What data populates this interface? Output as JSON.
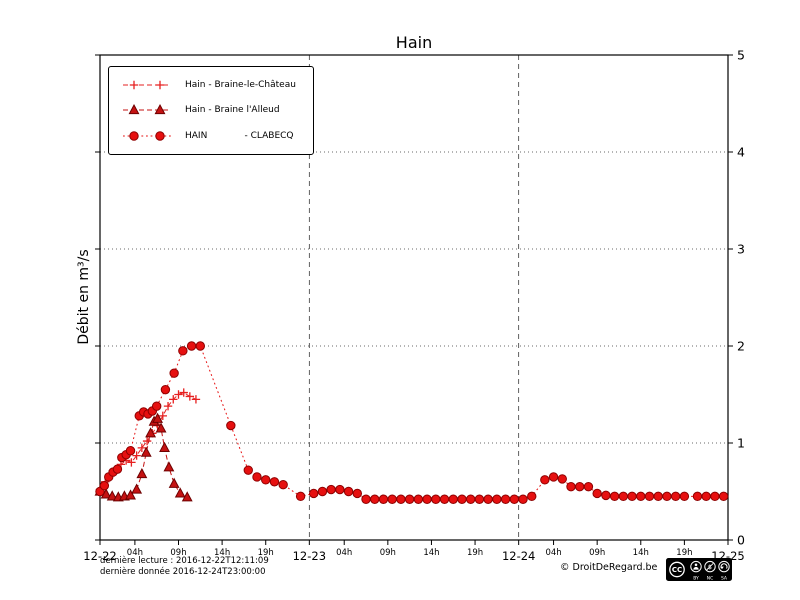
{
  "chart_data": {
    "type": "line",
    "title": "Hain",
    "ylabel": "Débit en m³/s",
    "xlabel": "",
    "x_unit": "hours since 2016-12-22 00:00",
    "xlim": [
      0,
      72
    ],
    "ylim": [
      0,
      5
    ],
    "legend_position": "upper left",
    "grid": {
      "h_lines": [
        1,
        2,
        3,
        4
      ],
      "v_lines": [
        24,
        48
      ]
    },
    "y_ticks": [
      {
        "v": 0,
        "label": "0"
      },
      {
        "v": 1,
        "label": "1"
      },
      {
        "v": 2,
        "label": "2"
      },
      {
        "v": 3,
        "label": "3"
      },
      {
        "v": 4,
        "label": "4"
      },
      {
        "v": 5,
        "label": "5"
      }
    ],
    "x_ticks": [
      {
        "t": 0,
        "label": "12-22",
        "major": true
      },
      {
        "t": 4,
        "label": "04h",
        "major": false
      },
      {
        "t": 9,
        "label": "09h",
        "major": false
      },
      {
        "t": 14,
        "label": "14h",
        "major": false
      },
      {
        "t": 19,
        "label": "19h",
        "major": false
      },
      {
        "t": 24,
        "label": "12-23",
        "major": true
      },
      {
        "t": 28,
        "label": "04h",
        "major": false
      },
      {
        "t": 33,
        "label": "09h",
        "major": false
      },
      {
        "t": 38,
        "label": "14h",
        "major": false
      },
      {
        "t": 43,
        "label": "19h",
        "major": false
      },
      {
        "t": 48,
        "label": "12-24",
        "major": true
      },
      {
        "t": 52,
        "label": "04h",
        "major": false
      },
      {
        "t": 57,
        "label": "09h",
        "major": false
      },
      {
        "t": 62,
        "label": "14h",
        "major": false
      },
      {
        "t": 67,
        "label": "19h",
        "major": false
      },
      {
        "t": 72,
        "label": "12-25",
        "major": true
      }
    ],
    "series": [
      {
        "name": "Hain - Braine-le-Château",
        "marker": "plus",
        "line": "dashed",
        "color": "#e62020",
        "edge": "#e62020",
        "points": [
          [
            0,
            0.52
          ],
          [
            0.6,
            0.6
          ],
          [
            1.2,
            0.66
          ],
          [
            1.8,
            0.73
          ],
          [
            2.4,
            0.78
          ],
          [
            3,
            0.82
          ],
          [
            3.6,
            0.8
          ],
          [
            4.2,
            0.87
          ],
          [
            4.8,
            0.95
          ],
          [
            5.4,
            1.02
          ],
          [
            6,
            1.1
          ],
          [
            6.6,
            1.18
          ],
          [
            7.2,
            1.28
          ],
          [
            7.8,
            1.38
          ],
          [
            8.4,
            1.45
          ],
          [
            9,
            1.5
          ],
          [
            9.6,
            1.52
          ],
          [
            10.3,
            1.48
          ],
          [
            11,
            1.45
          ]
        ]
      },
      {
        "name": "Hain - Braine l'Alleud",
        "marker": "triangle",
        "line": "dashed",
        "color": "#c41212",
        "edge": "#6e0000",
        "points": [
          [
            0,
            0.5
          ],
          [
            0.7,
            0.47
          ],
          [
            1.4,
            0.45
          ],
          [
            2.1,
            0.44
          ],
          [
            2.8,
            0.45
          ],
          [
            3.5,
            0.46
          ],
          [
            4.2,
            0.52
          ],
          [
            4.8,
            0.68
          ],
          [
            5.3,
            0.9
          ],
          [
            5.8,
            1.1
          ],
          [
            6.2,
            1.22
          ],
          [
            6.6,
            1.25
          ],
          [
            7,
            1.15
          ],
          [
            7.4,
            0.95
          ],
          [
            7.9,
            0.75
          ],
          [
            8.5,
            0.58
          ],
          [
            9.2,
            0.48
          ],
          [
            10,
            0.44
          ]
        ]
      },
      {
        "name": "HAIN             - CLABECQ",
        "marker": "circle",
        "line": "dotted",
        "color": "#e61010",
        "edge": "#8e0000",
        "points": [
          [
            0,
            0.5
          ],
          [
            0.5,
            0.56
          ],
          [
            1,
            0.65
          ],
          [
            1.5,
            0.7
          ],
          [
            2,
            0.73
          ],
          [
            2.5,
            0.85
          ],
          [
            3,
            0.88
          ],
          [
            3.5,
            0.92
          ],
          [
            4.5,
            1.28
          ],
          [
            5,
            1.32
          ],
          [
            5.5,
            1.3
          ],
          [
            6,
            1.33
          ],
          [
            6.5,
            1.38
          ],
          [
            7.5,
            1.55
          ],
          [
            8.5,
            1.72
          ],
          [
            9.5,
            1.95
          ],
          [
            10.5,
            2
          ],
          [
            11.5,
            2
          ],
          [
            15,
            1.18
          ],
          [
            17,
            0.72
          ],
          [
            18,
            0.65
          ],
          [
            19,
            0.62
          ],
          [
            20,
            0.6
          ],
          [
            21,
            0.57
          ],
          [
            23,
            0.45
          ],
          [
            24.5,
            0.48
          ],
          [
            25.5,
            0.5
          ],
          [
            26.5,
            0.52
          ],
          [
            27.5,
            0.52
          ],
          [
            28.5,
            0.5
          ],
          [
            29.5,
            0.48
          ],
          [
            30.5,
            0.42
          ],
          [
            31.5,
            0.42
          ],
          [
            32.5,
            0.42
          ],
          [
            33.5,
            0.42
          ],
          [
            34.5,
            0.42
          ],
          [
            35.5,
            0.42
          ],
          [
            36.5,
            0.42
          ],
          [
            37.5,
            0.42
          ],
          [
            38.5,
            0.42
          ],
          [
            39.5,
            0.42
          ],
          [
            40.5,
            0.42
          ],
          [
            41.5,
            0.42
          ],
          [
            42.5,
            0.42
          ],
          [
            43.5,
            0.42
          ],
          [
            44.5,
            0.42
          ],
          [
            45.5,
            0.42
          ],
          [
            46.5,
            0.42
          ],
          [
            47.5,
            0.42
          ],
          [
            48.5,
            0.42
          ],
          [
            49.5,
            0.45
          ],
          [
            51,
            0.62
          ],
          [
            52,
            0.65
          ],
          [
            53,
            0.63
          ],
          [
            54,
            0.55
          ],
          [
            55,
            0.55
          ],
          [
            56,
            0.55
          ],
          [
            57,
            0.48
          ],
          [
            58,
            0.46
          ],
          [
            59,
            0.45
          ],
          [
            60,
            0.45
          ],
          [
            61,
            0.45
          ],
          [
            62,
            0.45
          ],
          [
            63,
            0.45
          ],
          [
            64,
            0.45
          ],
          [
            65,
            0.45
          ],
          [
            66,
            0.45
          ],
          [
            67,
            0.45
          ],
          [
            68.5,
            0.45
          ],
          [
            69.5,
            0.45
          ],
          [
            70.5,
            0.45
          ],
          [
            71.5,
            0.45
          ]
        ]
      }
    ]
  },
  "footer": {
    "last_reading": "dernière lecture : 2016-12-22T12:11:09",
    "last_data": "dernière donnée  2016-12-24T23:00:00",
    "copyright": "© DroitDeRegard.be",
    "license": {
      "label": "CC",
      "terms": [
        "BY",
        "NC",
        "SA"
      ]
    }
  }
}
